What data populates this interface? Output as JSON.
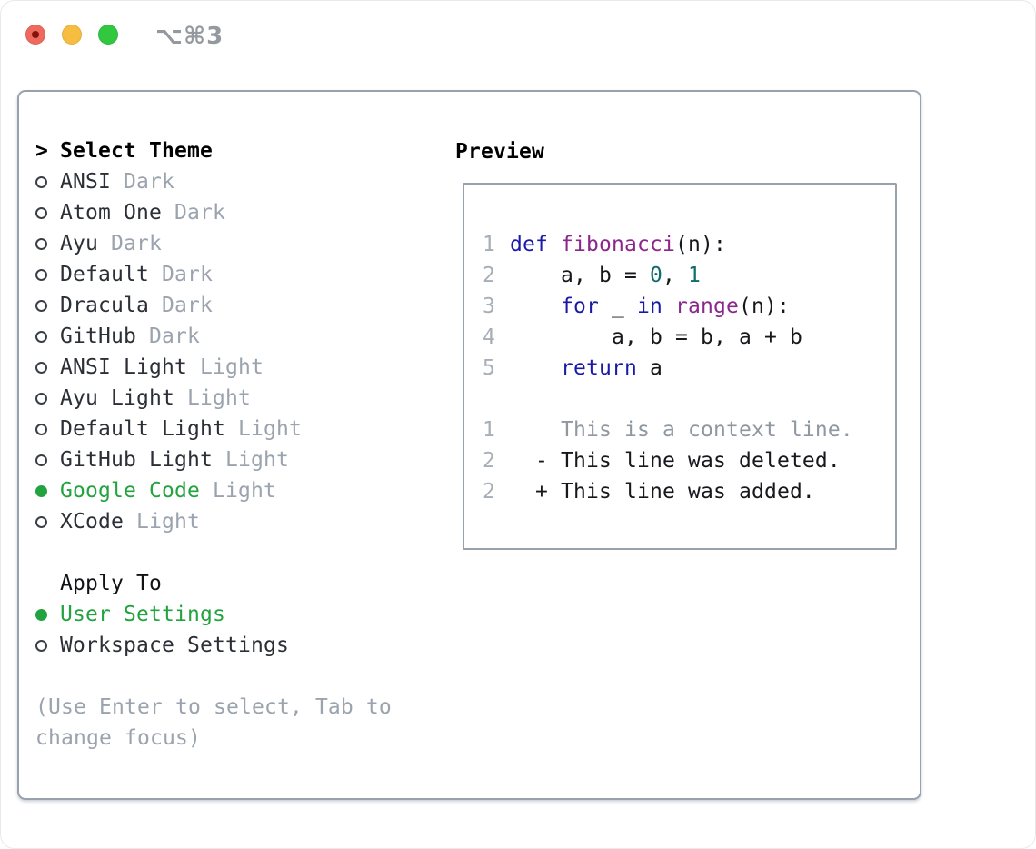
{
  "window": {
    "title": "⌥⌘3",
    "traffic_lights": {
      "close_color": "#ee6a5e",
      "close_unsaved_dot_color": "#861309",
      "minimize_color": "#f6bd40",
      "zoom_color": "#31c73f"
    }
  },
  "theme_picker": {
    "prompt": ">",
    "header": "Select Theme",
    "themes": [
      {
        "name": "ANSI",
        "variant": "Dark",
        "selected": false
      },
      {
        "name": "Atom One",
        "variant": "Dark",
        "selected": false
      },
      {
        "name": "Ayu",
        "variant": "Dark",
        "selected": false
      },
      {
        "name": "Default",
        "variant": "Dark",
        "selected": false
      },
      {
        "name": "Dracula",
        "variant": "Dark",
        "selected": false
      },
      {
        "name": "GitHub",
        "variant": "Dark",
        "selected": false
      },
      {
        "name": "ANSI Light",
        "variant": "Light",
        "selected": false
      },
      {
        "name": "Ayu Light",
        "variant": "Light",
        "selected": false
      },
      {
        "name": "Default Light",
        "variant": "Light",
        "selected": false
      },
      {
        "name": "GitHub Light",
        "variant": "Light",
        "selected": false
      },
      {
        "name": "Google Code",
        "variant": "Light",
        "selected": true
      },
      {
        "name": "XCode",
        "variant": "Light",
        "selected": false
      }
    ]
  },
  "apply_to": {
    "header": "Apply To",
    "options": [
      {
        "name": "User Settings",
        "selected": true
      },
      {
        "name": "Workspace Settings",
        "selected": false
      }
    ]
  },
  "hint": "(Use Enter to select, Tab to change focus)",
  "preview": {
    "header": "Preview",
    "code_lines": [
      {
        "num": "1",
        "tokens": [
          {
            "text": "def",
            "type": "keyword"
          },
          {
            "text": " "
          },
          {
            "text": "fibonacci",
            "type": "title"
          },
          {
            "text": "(n):"
          }
        ]
      },
      {
        "num": "2",
        "tokens": [
          {
            "text": "    a, b = "
          },
          {
            "text": "0",
            "type": "number"
          },
          {
            "text": ", "
          },
          {
            "text": "1",
            "type": "number"
          }
        ]
      },
      {
        "num": "3",
        "tokens": [
          {
            "text": "    "
          },
          {
            "text": "for",
            "type": "keyword"
          },
          {
            "text": " _ "
          },
          {
            "text": "in",
            "type": "keyword"
          },
          {
            "text": " "
          },
          {
            "text": "range",
            "type": "title"
          },
          {
            "text": "(n):"
          }
        ]
      },
      {
        "num": "4",
        "tokens": [
          {
            "text": "        a, b = b, a + b"
          }
        ]
      },
      {
        "num": "5",
        "tokens": [
          {
            "text": "    "
          },
          {
            "text": "return",
            "type": "keyword"
          },
          {
            "text": " a"
          }
        ]
      }
    ],
    "diff_lines": [
      {
        "num": "1",
        "text": "    This is a context line.",
        "type": "context"
      },
      {
        "num": "2",
        "text": "  - This line was deleted.",
        "type": "deleted"
      },
      {
        "num": "2",
        "text": "  + This line was added.",
        "type": "added"
      }
    ]
  },
  "colors": {
    "selection_green": "#23a33f",
    "added_green": "#0db20d",
    "deleted_red": "#c43a23",
    "syntax_keyword": "#1a1aa8",
    "syntax_function": "#8b278b",
    "syntax_number": "#0e6b6e",
    "muted_gray": "#9aa3ae",
    "line_number_gray": "#a6aeb8",
    "context_gray": "#8f97a1",
    "panel_border": "#98a2ac"
  }
}
